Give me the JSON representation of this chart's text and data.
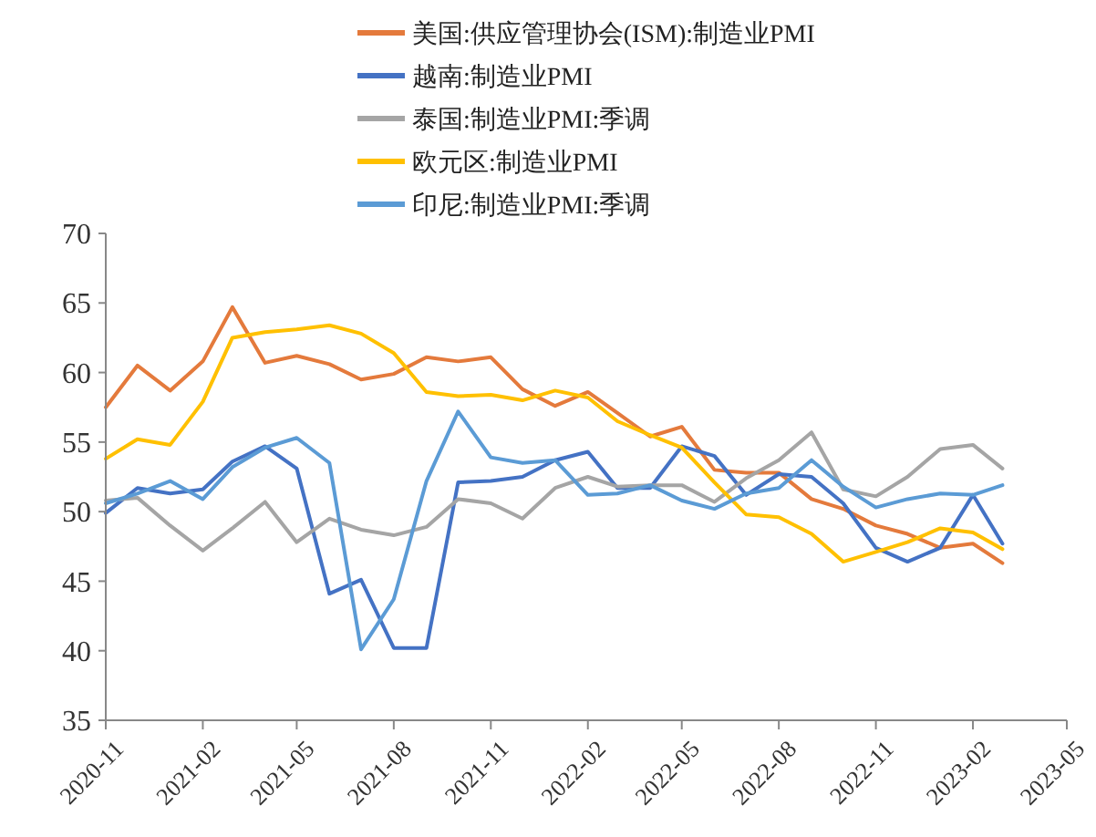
{
  "chart_data": {
    "type": "line",
    "x": [
      "2020-11",
      "2020-12",
      "2021-01",
      "2021-02",
      "2021-03",
      "2021-04",
      "2021-05",
      "2021-06",
      "2021-07",
      "2021-08",
      "2021-09",
      "2021-10",
      "2021-11",
      "2021-12",
      "2022-01",
      "2022-02",
      "2022-03",
      "2022-04",
      "2022-05",
      "2022-06",
      "2022-07",
      "2022-08",
      "2022-09",
      "2022-10",
      "2022-11",
      "2022-12",
      "2023-01",
      "2023-02",
      "2023-03"
    ],
    "series": [
      {
        "name": "美国:供应管理协会(ISM):制造业PMI",
        "color": "#e47a3c",
        "values": [
          57.5,
          60.5,
          58.7,
          60.8,
          64.7,
          60.7,
          61.2,
          60.6,
          59.5,
          59.9,
          61.1,
          60.8,
          61.1,
          58.8,
          57.6,
          58.6,
          57.1,
          55.4,
          56.1,
          53.0,
          52.8,
          52.8,
          50.9,
          50.2,
          49.0,
          48.4,
          47.4,
          47.7,
          46.3
        ]
      },
      {
        "name": "越南:制造业PMI",
        "color": "#4472c4",
        "values": [
          49.9,
          51.7,
          51.3,
          51.6,
          53.6,
          54.7,
          53.1,
          44.1,
          45.1,
          40.2,
          40.2,
          52.1,
          52.2,
          52.5,
          53.7,
          54.3,
          51.7,
          51.7,
          54.7,
          54.0,
          51.2,
          52.7,
          52.5,
          50.6,
          47.4,
          46.4,
          47.4,
          51.2,
          47.7
        ]
      },
      {
        "name": "泰国:制造业PMI:季调",
        "color": "#a5a5a5",
        "values": [
          50.8,
          51.0,
          49.0,
          47.2,
          48.8,
          50.7,
          47.8,
          49.5,
          48.7,
          48.3,
          48.9,
          50.9,
          50.6,
          49.5,
          51.7,
          52.5,
          51.8,
          51.9,
          51.9,
          50.7,
          52.4,
          53.7,
          55.7,
          51.6,
          51.1,
          52.5,
          54.5,
          54.8,
          53.1
        ]
      },
      {
        "name": "欧元区:制造业PMI",
        "color": "#ffc000",
        "values": [
          53.8,
          55.2,
          54.8,
          57.9,
          62.5,
          62.9,
          63.1,
          63.4,
          62.8,
          61.4,
          58.6,
          58.3,
          58.4,
          58.0,
          58.7,
          58.2,
          56.5,
          55.5,
          54.6,
          52.1,
          49.8,
          49.6,
          48.4,
          46.4,
          47.1,
          47.8,
          48.8,
          48.5,
          47.3
        ]
      },
      {
        "name": "印尼:制造业PMI:季调",
        "color": "#5b9bd5",
        "values": [
          50.6,
          51.3,
          52.2,
          50.9,
          53.2,
          54.6,
          55.3,
          53.5,
          40.1,
          43.7,
          52.2,
          57.2,
          53.9,
          53.5,
          53.7,
          51.2,
          51.3,
          51.9,
          50.8,
          50.2,
          51.3,
          51.7,
          53.7,
          51.8,
          50.3,
          50.9,
          51.3,
          51.2,
          51.9
        ]
      }
    ],
    "xlim": [
      "2020-11",
      "2023-05"
    ],
    "xticks": [
      "2020-11",
      "2021-02",
      "2021-05",
      "2021-08",
      "2021-11",
      "2022-02",
      "2022-05",
      "2022-08",
      "2022-11",
      "2023-02",
      "2023-05"
    ],
    "ylim": [
      35,
      70
    ],
    "yticks": [
      35,
      40,
      45,
      50,
      55,
      60,
      65,
      70
    ],
    "grid": false,
    "legend": "top",
    "marker": "none",
    "line_style": "solid"
  }
}
